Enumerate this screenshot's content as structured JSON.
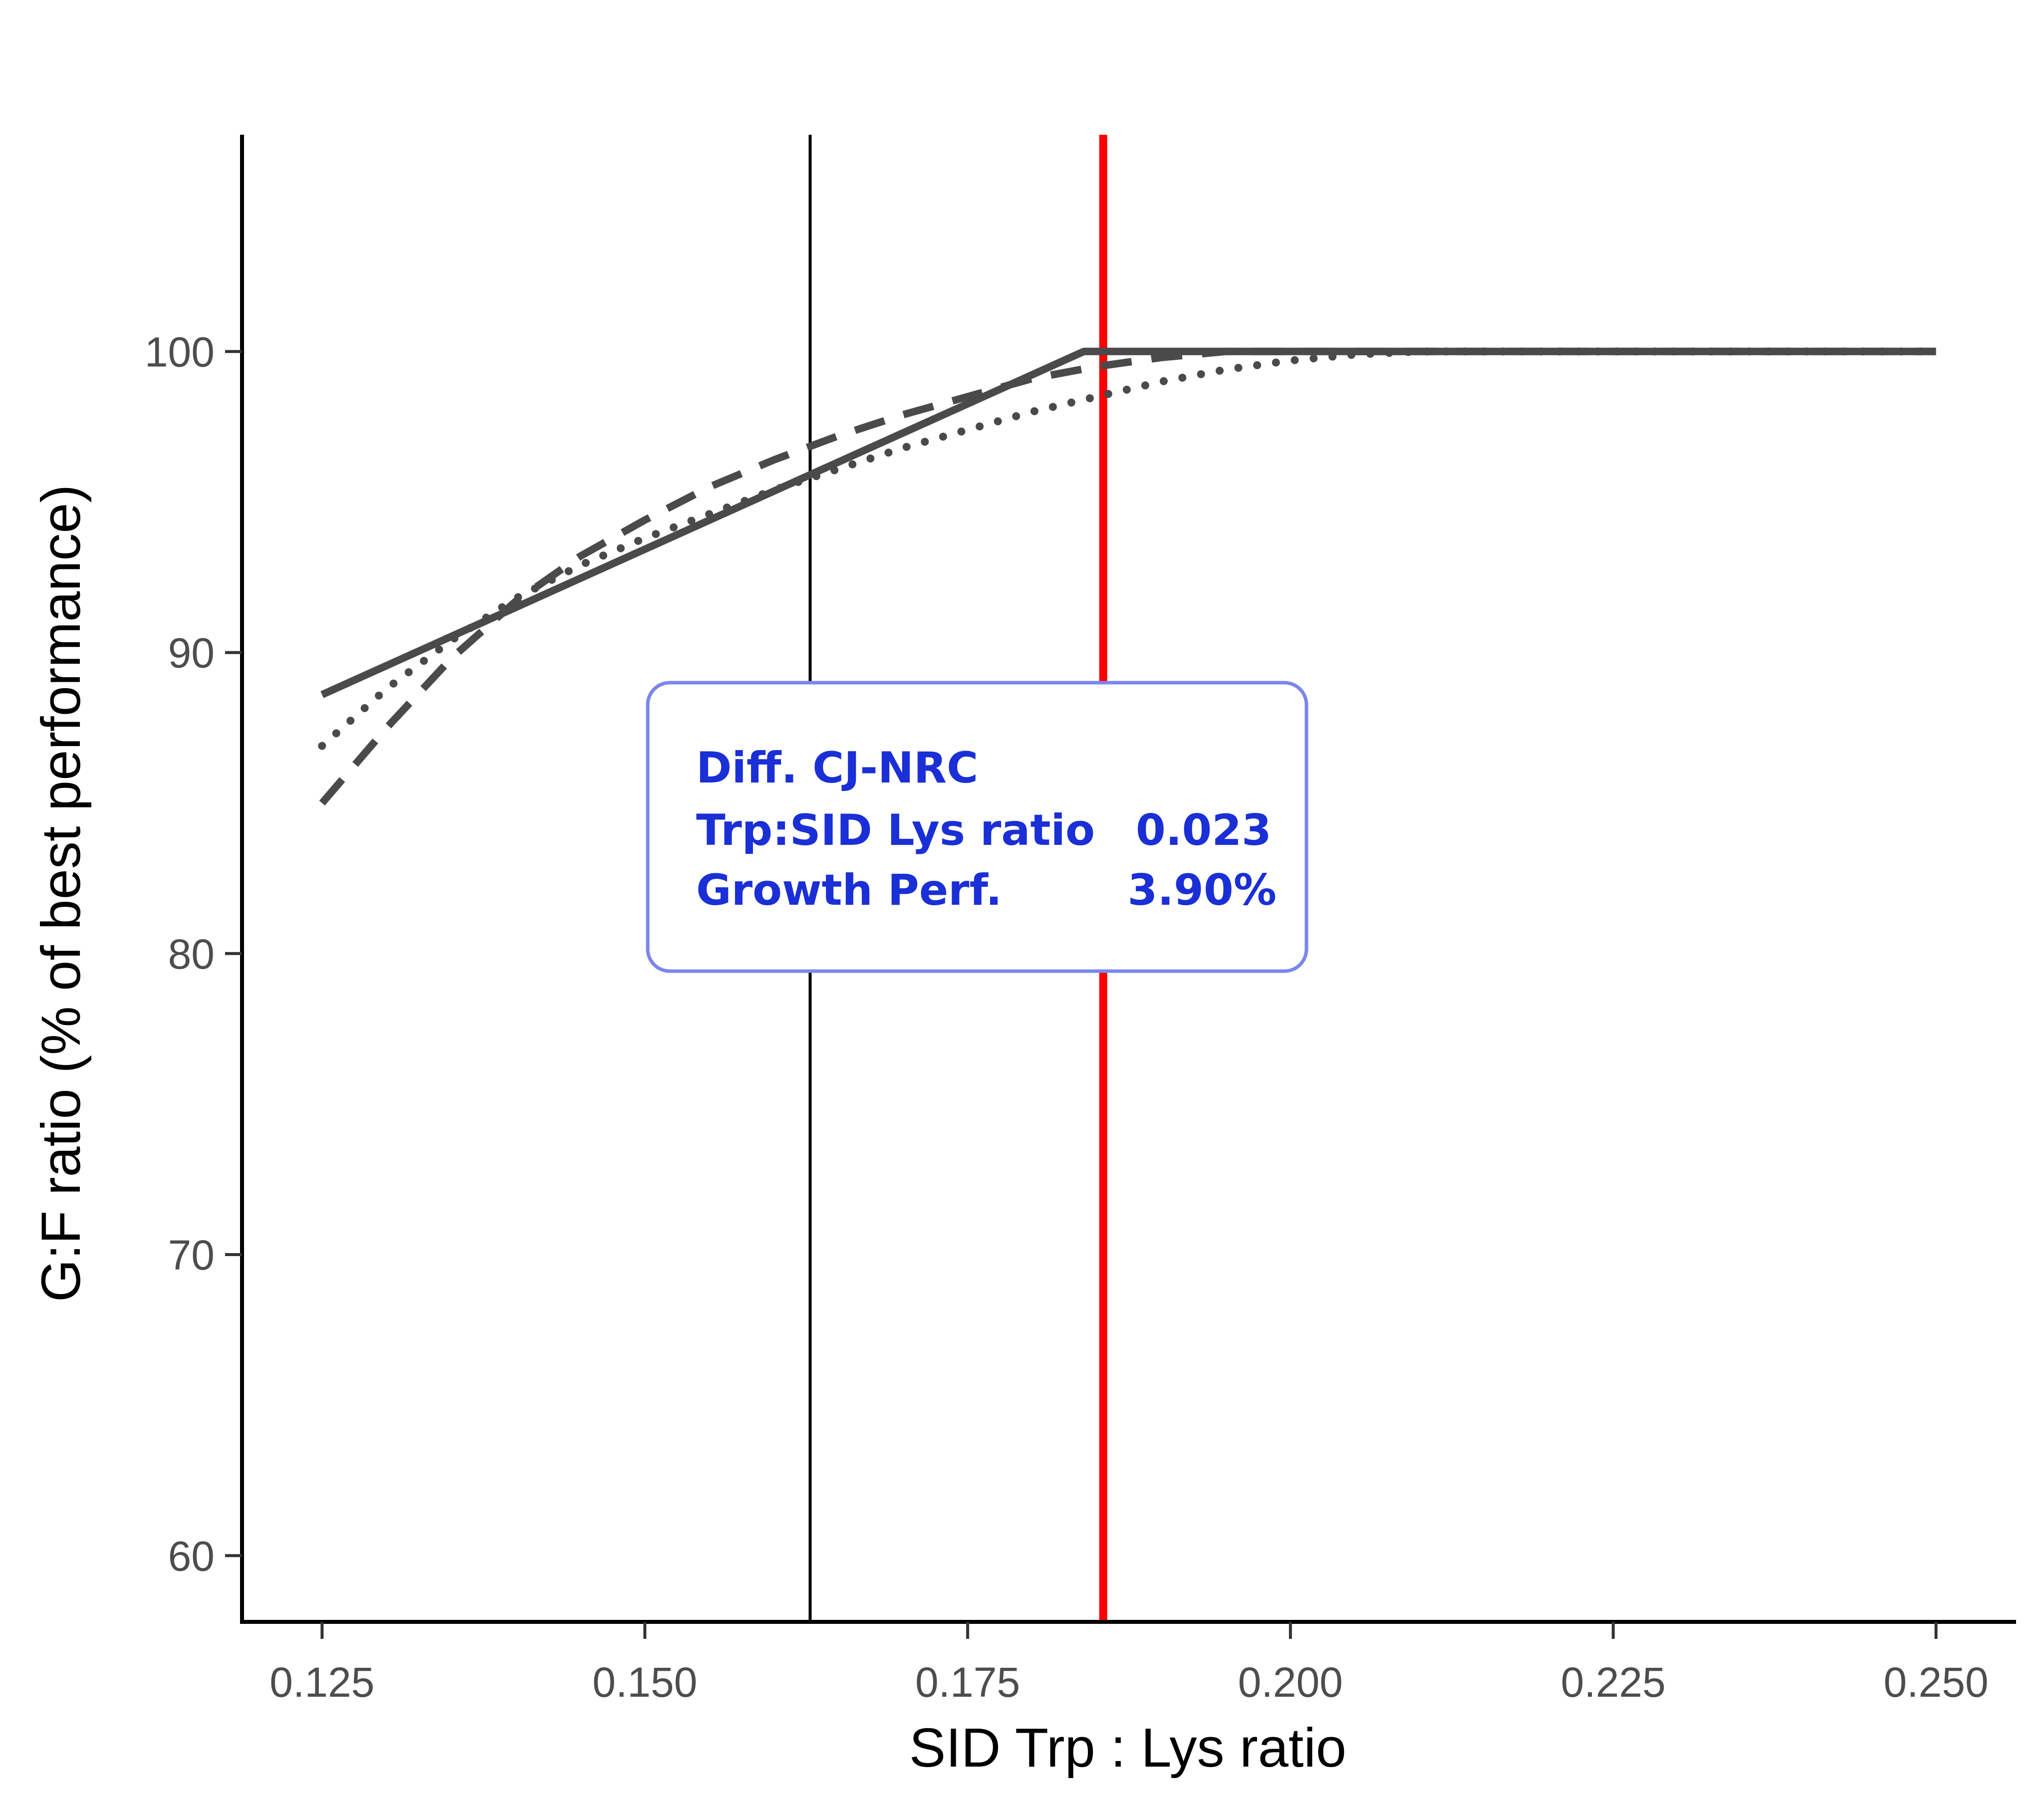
{
  "chart_data": {
    "type": "line",
    "title": "",
    "xlabel": "SID Trp : Lys ratio",
    "ylabel": "G:F ratio (% of best performance)",
    "xlim": [
      0.1188,
      0.2562
    ],
    "ylim": [
      57.8,
      107.2
    ],
    "x_ticks": [
      0.125,
      0.15,
      0.175,
      0.2,
      0.225,
      0.25
    ],
    "x_tick_labels": [
      "0.125",
      "0.150",
      "0.175",
      "0.200",
      "0.225",
      "0.250"
    ],
    "y_ticks": [
      60,
      70,
      80,
      90,
      100
    ],
    "y_tick_labels": [
      "60",
      "70",
      "80",
      "90",
      "100"
    ],
    "grid": false,
    "legend": "none",
    "series": [
      {
        "style": "solid",
        "color": "#4a4a4a",
        "x": [
          0.125,
          0.184,
          0.25
        ],
        "y": [
          88.6,
          100.0,
          100.0
        ]
      },
      {
        "style": "dashed",
        "color": "#4a4a4a",
        "x": [
          0.125,
          0.13,
          0.135,
          0.14,
          0.145,
          0.15,
          0.155,
          0.16,
          0.165,
          0.17,
          0.175,
          0.18,
          0.185,
          0.19,
          0.195,
          0.2,
          0.21,
          0.22,
          0.23,
          0.24,
          0.25
        ],
        "y": [
          85.0,
          87.5,
          89.8,
          91.7,
          93.2,
          94.4,
          95.5,
          96.4,
          97.2,
          97.9,
          98.5,
          99.1,
          99.5,
          99.8,
          100.0,
          100.0,
          100.0,
          100.0,
          100.0,
          100.0,
          100.0
        ]
      },
      {
        "style": "dotted",
        "color": "#4a4a4a",
        "x": [
          0.125,
          0.13,
          0.135,
          0.14,
          0.145,
          0.15,
          0.155,
          0.16,
          0.165,
          0.17,
          0.175,
          0.18,
          0.185,
          0.19,
          0.195,
          0.2,
          0.205,
          0.21,
          0.22,
          0.23,
          0.24,
          0.25
        ],
        "y": [
          86.9,
          88.8,
          90.4,
          91.8,
          92.9,
          93.8,
          94.6,
          95.4,
          96.1,
          96.8,
          97.4,
          98.0,
          98.5,
          99.0,
          99.4,
          99.7,
          99.9,
          100.0,
          100.0,
          100.0,
          100.0,
          100.0
        ]
      }
    ],
    "vlines": [
      {
        "x": 0.1628,
        "color": "#000000"
      },
      {
        "x": 0.1855,
        "color": "#ff0000"
      }
    ],
    "annotation": {
      "title": "Diff. CJ-NRC",
      "rows": [
        {
          "label": "Trp:SID Lys ratio",
          "value": "0.023"
        },
        {
          "label": "Growth Perf.",
          "value": "3.90%"
        }
      ],
      "border_color": "#7b86ec",
      "text_color": "#1a2fd6"
    }
  }
}
